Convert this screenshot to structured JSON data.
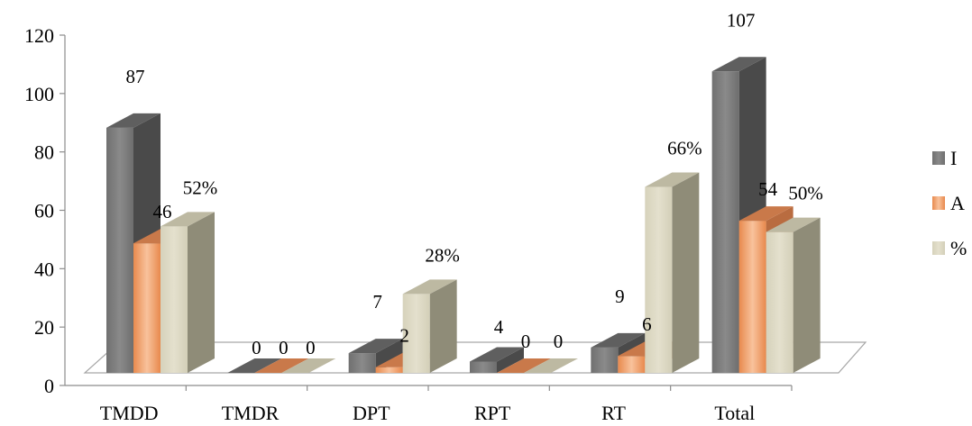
{
  "chart_data": {
    "type": "bar",
    "categories": [
      "TMDD",
      "TMDR",
      "DPT",
      "RPT",
      "RT",
      "Total"
    ],
    "series": [
      {
        "name": "I",
        "values": [
          87,
          0,
          7,
          4,
          9,
          107
        ],
        "labels": [
          "87",
          "0",
          "7",
          "4",
          "9",
          "107"
        ],
        "color": "#7f7f7f"
      },
      {
        "name": "A",
        "values": [
          46,
          0,
          2,
          0,
          6,
          54
        ],
        "labels": [
          "46",
          "0",
          "2",
          "0",
          "6",
          "54"
        ],
        "color": "#f0a06a"
      },
      {
        "name": "%",
        "values": [
          52,
          0,
          28,
          0,
          66,
          50
        ],
        "labels": [
          "52%",
          "0",
          "28%",
          "0",
          "66%",
          "50%"
        ],
        "color": "#ddd9c4"
      }
    ],
    "yticks": [
      0,
      20,
      40,
      60,
      80,
      100,
      120
    ],
    "ylim": [
      0,
      120
    ],
    "grid": false,
    "legend": "right",
    "title": "",
    "xlabel": "",
    "ylabel": ""
  }
}
